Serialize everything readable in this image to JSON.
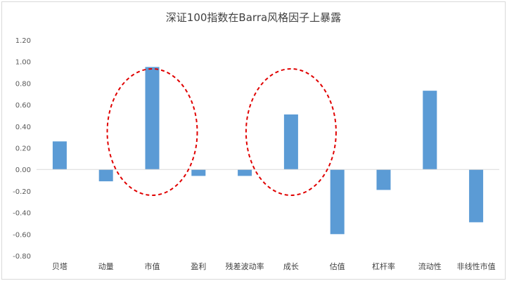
{
  "chart_data": {
    "type": "bar",
    "title": "深证100指数在Barra风格因子上暴露",
    "categories": [
      "贝塔",
      "动量",
      "市值",
      "盈利",
      "残差波动率",
      "成长",
      "估值",
      "杠杆率",
      "流动性",
      "非线性市值"
    ],
    "values": [
      0.26,
      -0.11,
      0.95,
      -0.06,
      -0.06,
      0.51,
      -0.6,
      -0.19,
      0.73,
      -0.49
    ],
    "ylim": [
      -0.8,
      1.2
    ],
    "yticks": [
      "1.20",
      "1.00",
      "0.80",
      "0.60",
      "0.40",
      "0.20",
      "0.00",
      "-0.20",
      "-0.40",
      "-0.60",
      "-0.80"
    ],
    "xlabel": "",
    "ylabel": "",
    "grid": false,
    "bar_color": "#5b9bd5",
    "highlight_color": "#e00000",
    "highlighted_categories": [
      "市值",
      "成长"
    ]
  }
}
